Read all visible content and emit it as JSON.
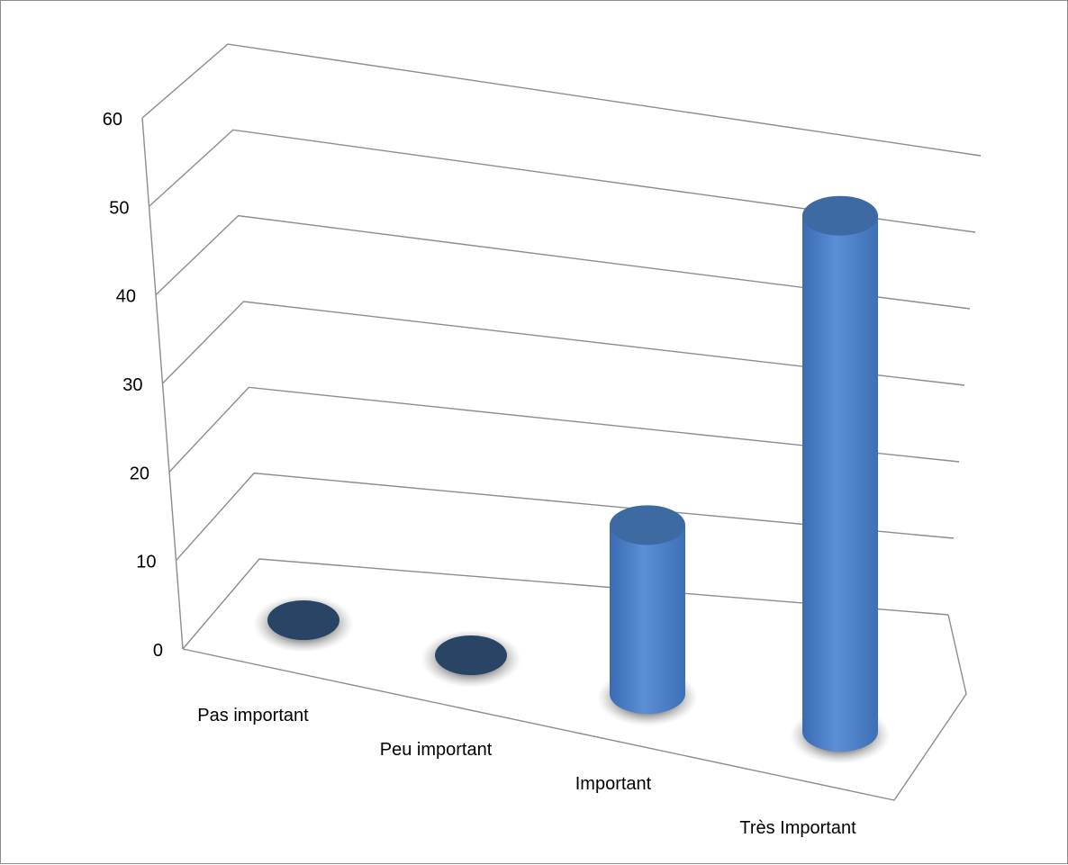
{
  "chart_data": {
    "type": "bar",
    "style": "3d-cylinder",
    "categories": [
      "Pas important",
      "Peu important",
      "Important",
      "Très Important"
    ],
    "values": [
      0,
      0,
      18,
      55
    ],
    "y_ticks": [
      "0",
      "10",
      "20",
      "30",
      "40",
      "50",
      "60"
    ],
    "ylim": [
      0,
      60
    ],
    "title": "",
    "xlabel": "",
    "ylabel": "",
    "grid": true,
    "legend": "none",
    "colors": {
      "bar_side_light": "#5b8fd6",
      "bar_side_dark": "#3a6bb3",
      "bar_top": "#3d6aa3",
      "zero_disc": "#2a4466",
      "shadow": "#7f7f7f",
      "grid": "#8c8c8c"
    }
  }
}
